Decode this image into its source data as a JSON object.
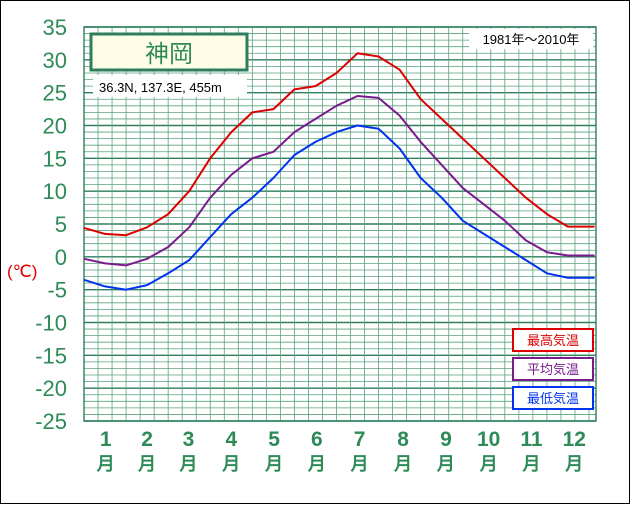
{
  "chart_data": {
    "type": "line",
    "title": "神岡",
    "subtitle": "36.3N,  137.3E,  455m",
    "period": "1981年〜2010年",
    "ylabel": "(℃)",
    "ylim": [
      -25,
      35
    ],
    "yticks": [
      "35",
      "30",
      "25",
      "20",
      "15",
      "10",
      "5",
      "0",
      "-5",
      "-10",
      "-15",
      "-20",
      "-25"
    ],
    "months": [
      {
        "num": "1",
        "unit": "月"
      },
      {
        "num": "2",
        "unit": "月"
      },
      {
        "num": "3",
        "unit": "月"
      },
      {
        "num": "4",
        "unit": "月"
      },
      {
        "num": "5",
        "unit": "月"
      },
      {
        "num": "6",
        "unit": "月"
      },
      {
        "num": "7",
        "unit": "月"
      },
      {
        "num": "8",
        "unit": "月"
      },
      {
        "num": "9",
        "unit": "月"
      },
      {
        "num": "10",
        "unit": "月"
      },
      {
        "num": "11",
        "unit": "月"
      },
      {
        "num": "12",
        "unit": "月"
      }
    ],
    "x_day": [
      1,
      16,
      31,
      46,
      61,
      76,
      91,
      106,
      121,
      136,
      151,
      166,
      181,
      196,
      211,
      226,
      241,
      256,
      271,
      286,
      301,
      316,
      331,
      346,
      365
    ],
    "grid": true,
    "legend_position": "bottom-right",
    "series": [
      {
        "name": "最高気温",
        "color": "#dd0000",
        "values": [
          4.4,
          3.5,
          3.3,
          4.5,
          6.5,
          10,
          15,
          19,
          22,
          22.5,
          25.5,
          26,
          28,
          31,
          30.5,
          28.5,
          24,
          21,
          18,
          15,
          12,
          9,
          6.5,
          4.6,
          4.6
        ]
      },
      {
        "name": "平均気温",
        "color": "#7a1a8c",
        "values": [
          -0.3,
          -1,
          -1.3,
          -0.3,
          1.5,
          4.5,
          9,
          12.5,
          15,
          16,
          19,
          21,
          23,
          24.5,
          24.2,
          21.5,
          17.5,
          14,
          10.5,
          8,
          5.5,
          2.5,
          0.7,
          0.2,
          0.2
        ]
      },
      {
        "name": "最低気温",
        "color": "#0033ee",
        "values": [
          -3.5,
          -4.5,
          -5,
          -4.3,
          -2.5,
          -0.5,
          3,
          6.5,
          9,
          12,
          15.5,
          17.5,
          19,
          20,
          19.5,
          16.5,
          12,
          9,
          5.5,
          3.5,
          1.5,
          -0.5,
          -2.5,
          -3.2,
          -3.2
        ]
      }
    ]
  }
}
